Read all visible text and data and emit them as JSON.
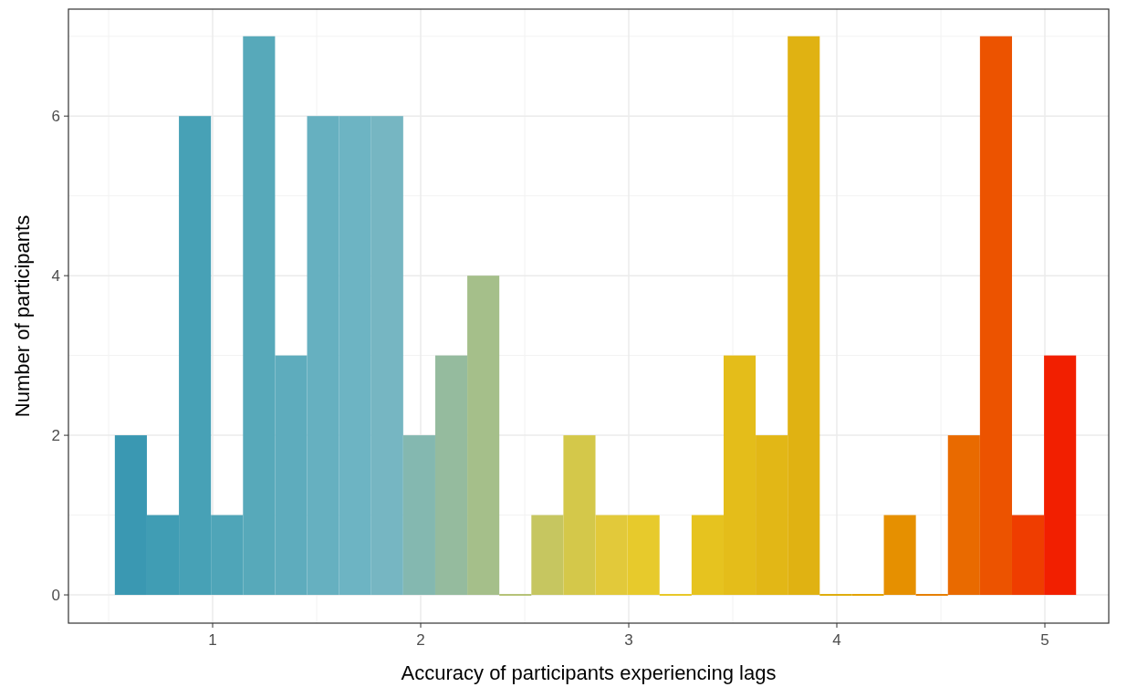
{
  "chart_data": {
    "type": "histogram",
    "xlabel": "Accuracy of participants experiencing lags",
    "ylabel": "Number of participants",
    "bins": [
      0.53,
      0.684,
      0.838,
      0.992,
      1.146,
      1.3,
      1.454,
      1.608,
      1.762,
      1.916,
      2.07,
      2.224,
      2.378,
      2.532,
      2.686,
      2.84,
      2.994,
      3.148,
      3.302,
      3.456,
      3.61,
      3.764,
      3.918,
      4.072,
      4.226,
      4.38,
      4.534,
      4.688,
      4.842,
      4.996,
      5.15
    ],
    "values": [
      2,
      1,
      6,
      1,
      7,
      3,
      6,
      6,
      6,
      2,
      3,
      4,
      0,
      1,
      2,
      1,
      1,
      0,
      1,
      3,
      2,
      7,
      0,
      0,
      1,
      0,
      2,
      7,
      1,
      3
    ],
    "colors": [
      "#3a98b2",
      "#409db4",
      "#47a1b6",
      "#4fa5b8",
      "#57a9ba",
      "#5eacbd",
      "#66b0c0",
      "#6db4c3",
      "#76b6c2",
      "#84b8b0",
      "#95bb9e",
      "#a5bf8a",
      "#b5c276",
      "#c6c660",
      "#d4c84a",
      "#e2c93a",
      "#e7ca2c",
      "#e8c825",
      "#e6c31f",
      "#e4bd1a",
      "#e2b716",
      "#e0b212",
      "#deac0a",
      "#e3a200",
      "#e69000",
      "#e67e00",
      "#e96a00",
      "#ec5300",
      "#ef3d00",
      "#f21f00"
    ],
    "xlim": [
      0.307,
      5.307
    ],
    "xticks": [
      1,
      2,
      3,
      4,
      5
    ],
    "ylim": [
      -0.354,
      7.34
    ],
    "yticks": [
      0,
      2,
      4,
      6
    ],
    "grid": true
  }
}
